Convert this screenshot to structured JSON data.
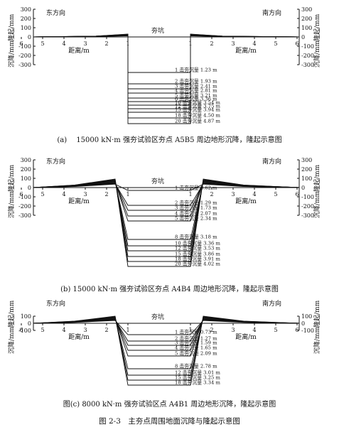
{
  "panels": [
    {
      "id": "a",
      "left_label": "东方向",
      "right_label": "南方向",
      "pit_label": "夯坑",
      "axis_y_left": [
        "沉降/mm",
        "隆起/mm"
      ],
      "axis_y_right": [
        "沉降/mm",
        "隆起/mm"
      ],
      "y_ticks": [
        300,
        200,
        100,
        0,
        -100,
        -200,
        -300
      ],
      "x_ticks_left": [
        6,
        5,
        4,
        3,
        2,
        1
      ],
      "x_ticks_right": [
        1,
        2,
        3,
        4,
        5,
        6
      ],
      "x_label": "距离/m",
      "settlements": [
        "1 击夯沉量 1.23 m",
        "2 击夯沉量 1.93 m",
        "3 击夯沉量 2.41 m",
        "4 击夯沉量 2.81 m",
        "5 击夯沉量 3.21 m",
        "6 击夯沉量 3.36 m",
        "10 击夯沉量 3.54 m",
        "12 击夯沉量 3.75 m",
        "15 击夯沉量 3.94 m",
        "18 击夯沉量 4.50 m",
        "20 击夯沉量 4.87 m"
      ],
      "caption": "(a)　 15000 kN·m 强夯试验区夯点 A5B5 周边地形沉降，隆起示意图"
    },
    {
      "id": "b",
      "left_label": "东方向",
      "right_label": "南方向",
      "pit_label": "夯坑",
      "axis_y_left": [
        "沉降/mm",
        "隆起/mm"
      ],
      "axis_y_right": [
        "沉降/mm",
        "隆起/mm"
      ],
      "y_ticks": [
        300,
        200,
        100,
        0,
        -100,
        -200,
        -300
      ],
      "x_ticks_left": [
        6,
        5,
        4,
        3,
        2,
        1
      ],
      "x_ticks_right": [
        1,
        2,
        3,
        4,
        5,
        6
      ],
      "x_label": "距离/m",
      "settlements": [
        "1 击夯沉量 0.62 m",
        "2 击夯沉量 1.29 m",
        "3 击夯沉量 1.73 m",
        "4 击夯沉量 2.07 m",
        "5 击夯沉量 2.34 m",
        "8 击夯沉量 3.18 m",
        "10 击夯沉量 3.36 m",
        "12 击夯沉量 3.53 m",
        "15 击夯沉量 3.86 m",
        "18 击夯沉量 3.91 m",
        "20 击夯沉量 4.02 m"
      ],
      "caption": "(b) 15000 kN·m 强夯试验区夯点 A4B4 周边地形沉降，隆起示意图"
    },
    {
      "id": "c",
      "left_label": "东方向",
      "right_label": "南方向",
      "pit_label": "夯坑",
      "axis_y_left": [
        "沉降/mm",
        "隆起/mm"
      ],
      "axis_y_right": [
        "沉降/mm",
        "隆起/mm"
      ],
      "y_ticks": [
        100,
        0,
        -100
      ],
      "x_ticks_left": [
        6,
        5,
        4,
        3,
        2,
        1
      ],
      "x_ticks_right": [
        1,
        2,
        3,
        4,
        5,
        6
      ],
      "x_label": "距离/m",
      "settlements": [
        "1 击夯沉量 0.73 m",
        "2 击夯沉量 1.27 m",
        "3 击夯沉量 1.59 m",
        "4 击夯沉量 1.65 m",
        "5 击夯沉量 2.09 m",
        "8 击夯沉量 2.78 m",
        "12 击夯沉量 3.01 m",
        "15 击夯沉量 3.25 m",
        "18 击夯沉量 3.34 m"
      ],
      "caption": "图(c) 8000 kN·m 强夯试验区点 A4B1 周边地形沉降，隆起示意图"
    }
  ],
  "figure_caption": "图 2-3　主夯点周围地面沉降与隆起示意图"
}
